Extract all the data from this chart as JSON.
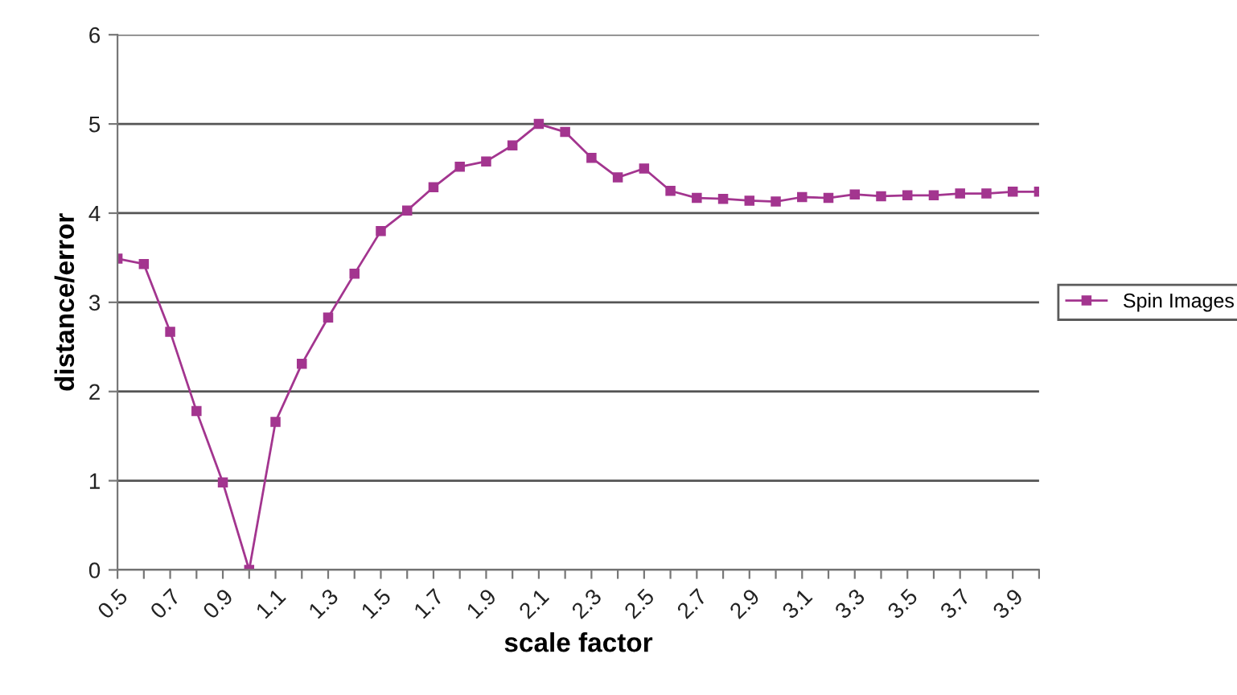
{
  "chart_data": {
    "type": "line",
    "xlabel": "scale factor",
    "ylabel": "distance/error",
    "categories": [
      "0.5",
      null,
      "0.7",
      null,
      "0.9",
      null,
      "1.1",
      null,
      "1.3",
      null,
      "1.5",
      null,
      "1.7",
      null,
      "1.9",
      null,
      "2.1",
      null,
      "2.3",
      null,
      "2.5",
      null,
      "2.7",
      null,
      "2.9",
      null,
      "3.1",
      null,
      "3.3",
      null,
      "3.5",
      null,
      "3.7",
      null,
      "3.9",
      null
    ],
    "series": [
      {
        "name": "Spin Images",
        "color": "#a3358f",
        "values": [
          3.49,
          3.43,
          2.67,
          1.78,
          0.98,
          0,
          1.66,
          2.31,
          2.83,
          3.32,
          3.8,
          4.03,
          4.29,
          4.52,
          4.58,
          4.76,
          5.0,
          4.91,
          4.62,
          4.4,
          4.5,
          4.25,
          4.17,
          4.16,
          4.14,
          4.13,
          4.18,
          4.17,
          4.21,
          4.19,
          4.2,
          4.2,
          4.22,
          4.22,
          4.24,
          4.24
        ]
      }
    ],
    "ylim": [
      0,
      6
    ],
    "yticks": [
      0,
      1,
      2,
      3,
      4,
      5,
      6
    ],
    "grid": "y",
    "legend": "right",
    "marker": "square",
    "line_style": "solid"
  }
}
